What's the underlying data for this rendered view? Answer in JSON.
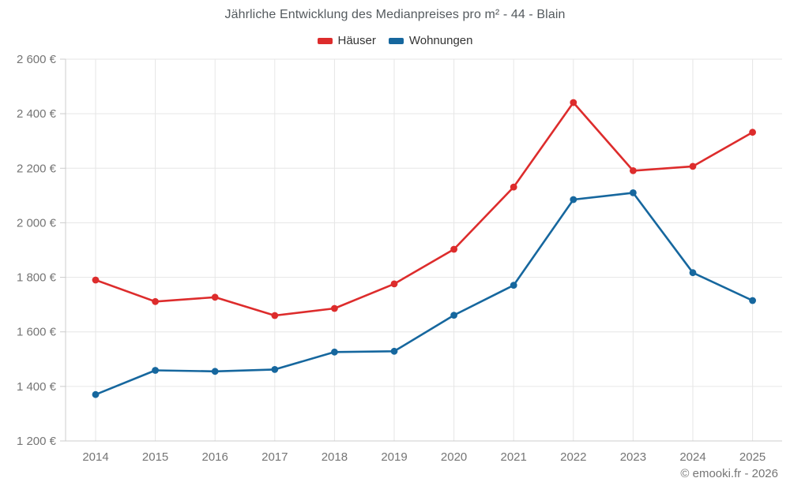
{
  "page": {
    "title": "Jährliche Entwicklung des Medianpreises pro m² - 44 - Blain",
    "footer": "© emooki.fr - 2026"
  },
  "colors": {
    "hauser": "#dd2c2c",
    "wohnungen": "#16679e",
    "grid": "#e6e6e6",
    "axis": "#cccccc",
    "axis_text": "#757575",
    "title_text": "#545a5e",
    "legend_text": "#333333"
  },
  "chart_data": {
    "type": "line",
    "title": "Jährliche Entwicklung des Medianpreises pro m² - 44 - Blain",
    "categories": [
      "2014",
      "2015",
      "2016",
      "2017",
      "2018",
      "2019",
      "2020",
      "2021",
      "2022",
      "2023",
      "2024",
      "2025"
    ],
    "series": [
      {
        "name": "Häuser",
        "color": "#dd2c2c",
        "values": [
          1790,
          1711,
          1727,
          1660,
          1686,
          1776,
          1903,
          2131,
          2441,
          2191,
          2207,
          2332
        ]
      },
      {
        "name": "Wohnungen",
        "color": "#16679e",
        "values": [
          1370,
          1459,
          1455,
          1462,
          1526,
          1529,
          1661,
          1771,
          2085,
          2110,
          1817,
          1715
        ]
      }
    ],
    "xlabel": "",
    "ylabel": "",
    "ylim": [
      1200,
      2600
    ],
    "y_tick_step": 200,
    "y_ticks": [
      {
        "value": 1200,
        "label": "1 200 €"
      },
      {
        "value": 1400,
        "label": "1 400 €"
      },
      {
        "value": 1600,
        "label": "1 600 €"
      },
      {
        "value": 1800,
        "label": "1 800 €"
      },
      {
        "value": 2000,
        "label": "2 000 €"
      },
      {
        "value": 2200,
        "label": "2 200 €"
      },
      {
        "value": 2400,
        "label": "2 400 €"
      },
      {
        "value": 2600,
        "label": "2 600 €"
      }
    ],
    "grid": true,
    "legend_position": "top",
    "legend": [
      "Häuser",
      "Wohnungen"
    ]
  }
}
